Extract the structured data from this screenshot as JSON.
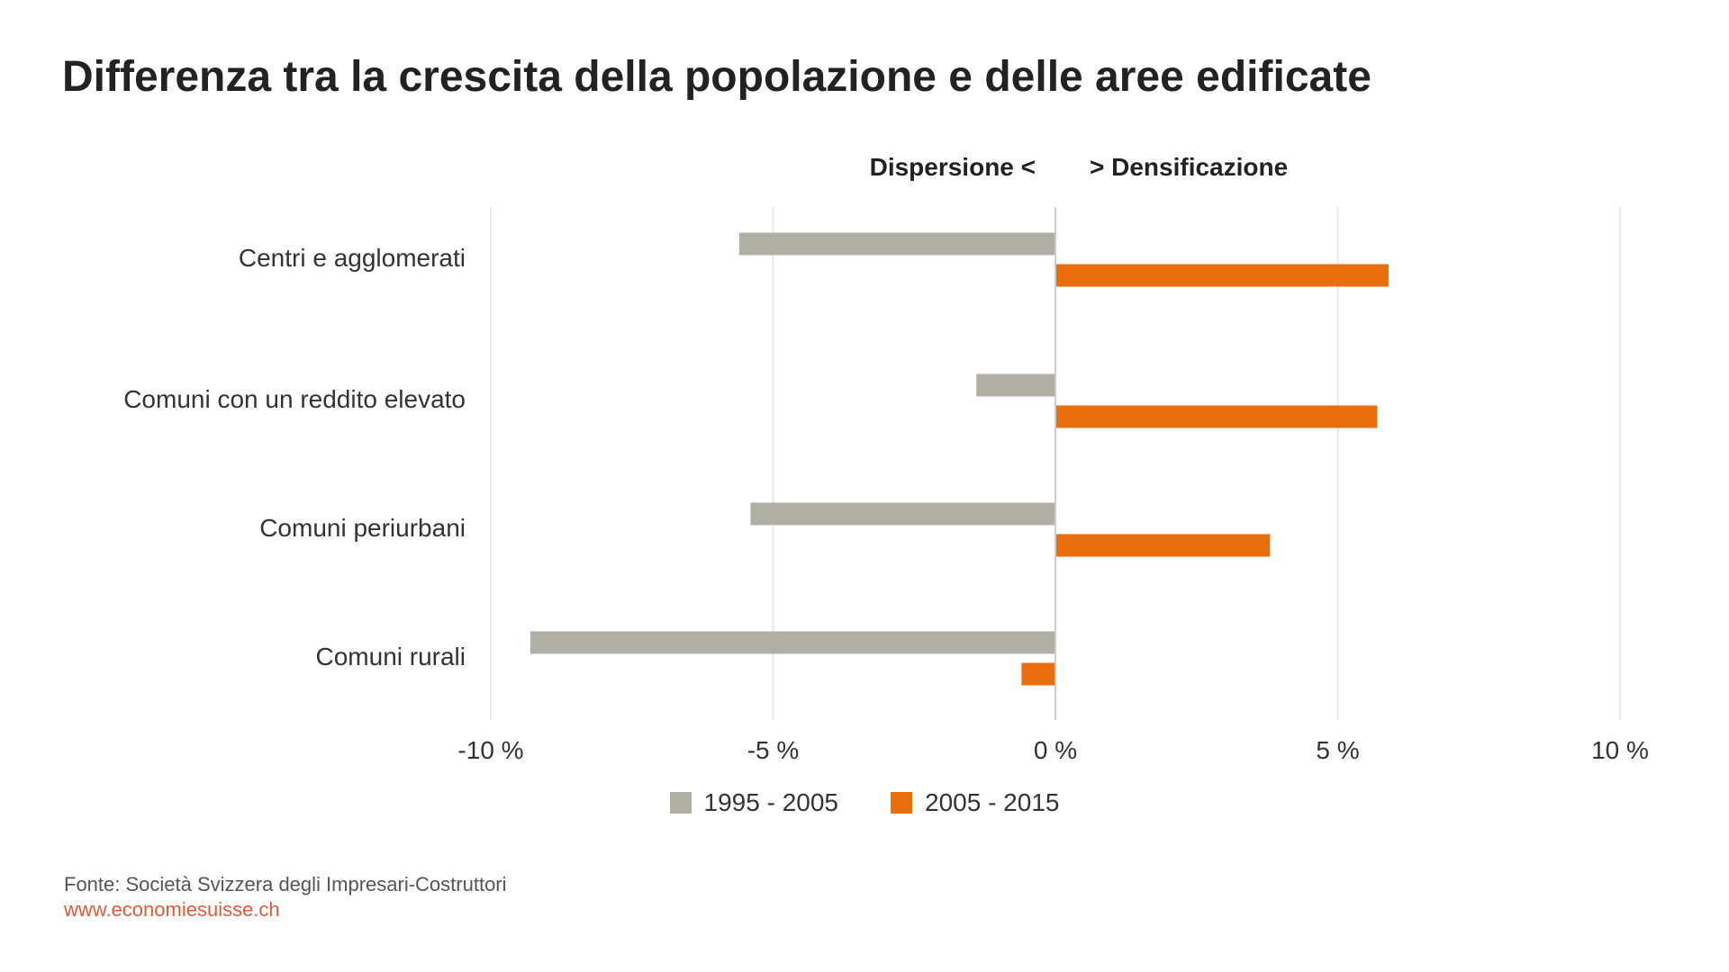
{
  "header": {
    "title": "Differenza tra la crescita della popolazione e delle aree edificate",
    "direction_left": "Dispersione <",
    "direction_right": "> Densificazione"
  },
  "footer": {
    "source": "Fonte: Società Svizzera degli Impresari-Costruttori",
    "url": "www.economiesuisse.ch"
  },
  "colors": {
    "series_1": "#b0afa3",
    "series_2": "#ea6d0e",
    "gridline": "#e3e3e3",
    "zero_line": "#cccccc"
  },
  "chart_data": {
    "type": "bar",
    "orientation": "horizontal",
    "categories": [
      "Centri e agglomerati",
      "Comuni con un reddito elevato",
      "Comuni periurbani",
      "Comuni rurali"
    ],
    "series": [
      {
        "name": "1995 - 2005",
        "values": [
          -5.6,
          -1.4,
          -5.4,
          -9.3
        ]
      },
      {
        "name": "2005 - 2015",
        "values": [
          5.9,
          5.7,
          3.8,
          -0.6
        ]
      }
    ],
    "xlim": [
      -10,
      10
    ],
    "xticks": [
      -10,
      -5,
      0,
      5,
      10
    ],
    "xtick_labels": [
      "-10 %",
      "-5 %",
      "0 %",
      "5 %",
      "10 %"
    ],
    "grid": true,
    "legend_position": "bottom-center"
  }
}
